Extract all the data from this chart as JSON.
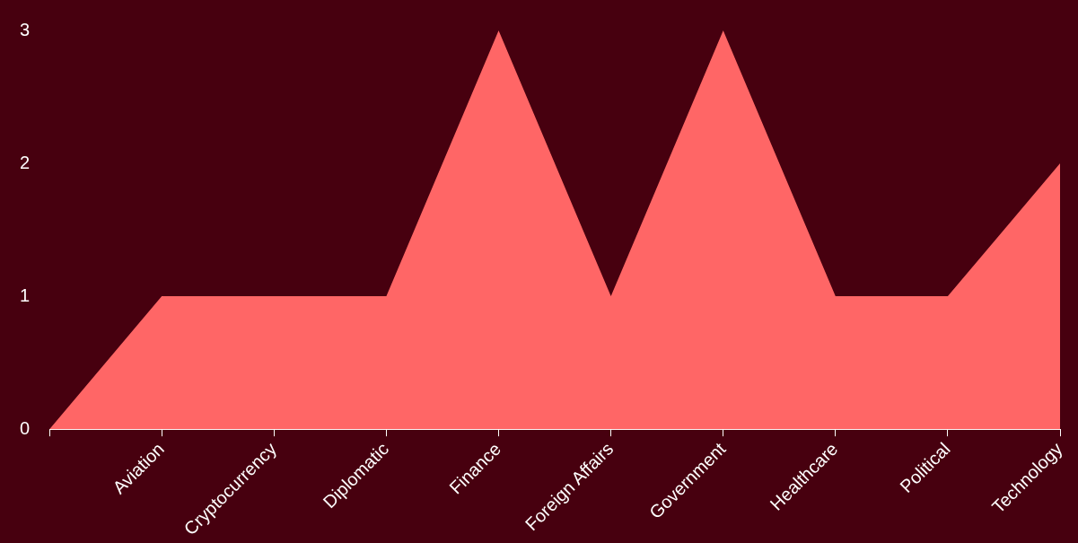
{
  "chart_data": {
    "type": "area",
    "categories": [
      null,
      "Aviation",
      "Cryptocurrency",
      "Diplomatic",
      "Finance",
      "Foreign Affairs",
      "Government",
      "Healthcare",
      "Political",
      "Technology"
    ],
    "values": [
      0,
      1,
      1,
      1,
      3,
      1,
      3,
      1,
      1,
      2
    ],
    "color": "#ff6666",
    "ylim": [
      0,
      3
    ],
    "yticks": [
      0,
      1,
      2,
      3
    ],
    "grid": false,
    "legend": false
  }
}
